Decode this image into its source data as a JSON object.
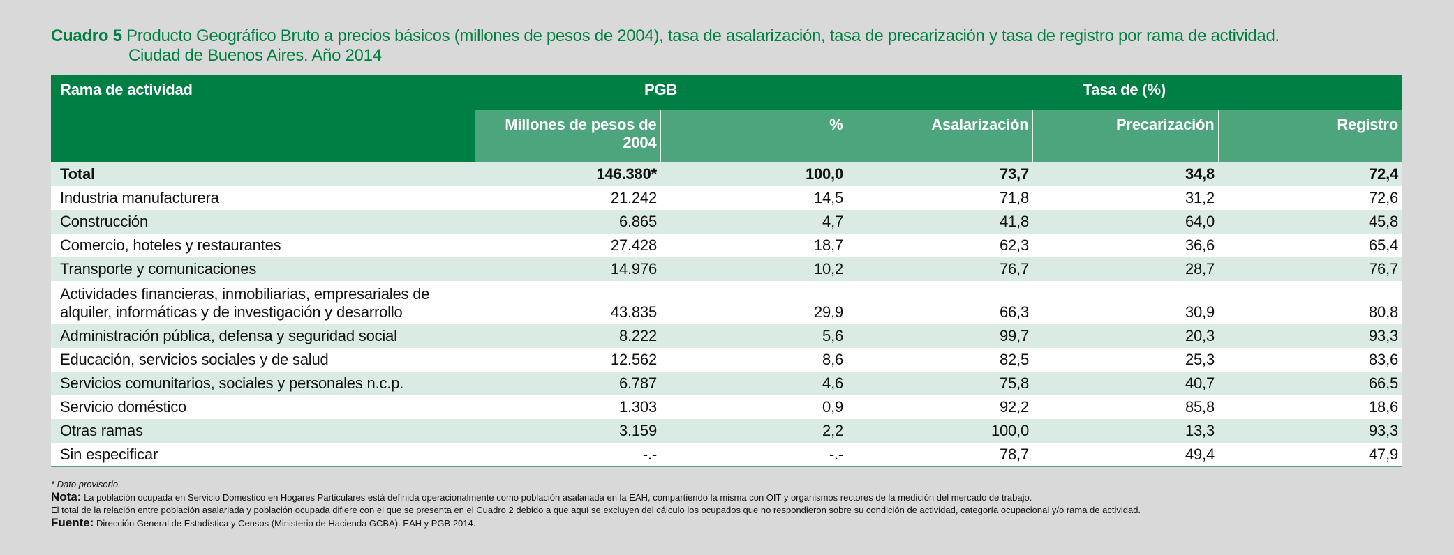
{
  "title": {
    "label": "Cuadro 5",
    "text": "Producto Geográfico Bruto a precios básicos (millones de pesos de 2004), tasa de asalarización, tasa de precarización y tasa de registro por rama de actividad.",
    "line2": "Ciudad de Buenos Aires. Año 2014"
  },
  "header": {
    "rama": "Rama de actividad",
    "pgb_group": "PGB",
    "tasa_group": "Tasa de (%)",
    "millones": "Millones de pesos de 2004",
    "pct": "%",
    "asalarizacion": "Asalarización",
    "precarizacion": "Precarización",
    "registro": "Registro"
  },
  "rows": [
    {
      "rama": "Total",
      "millones": "146.380*",
      "pct": "100,0",
      "asalarizacion": "73,7",
      "precarizacion": "34,8",
      "registro": "72,4"
    },
    {
      "rama": "Industria manufacturera",
      "millones": "21.242",
      "pct": "14,5",
      "asalarizacion": "71,8",
      "precarizacion": "31,2",
      "registro": "72,6"
    },
    {
      "rama": "Construcción",
      "millones": "6.865",
      "pct": "4,7",
      "asalarizacion": "41,8",
      "precarizacion": "64,0",
      "registro": "45,8"
    },
    {
      "rama": "Comercio, hoteles y restaurantes",
      "millones": "27.428",
      "pct": "18,7",
      "asalarizacion": "62,3",
      "precarizacion": "36,6",
      "registro": "65,4"
    },
    {
      "rama": "Transporte y comunicaciones",
      "millones": "14.976",
      "pct": "10,2",
      "asalarizacion": "76,7",
      "precarizacion": "28,7",
      "registro": "76,7"
    },
    {
      "rama": "Actividades financieras, inmobiliarias, empresariales de alquiler, informáticas y de investigación y desarrollo",
      "millones": "43.835",
      "pct": "29,9",
      "asalarizacion": "66,3",
      "precarizacion": "30,9",
      "registro": "80,8"
    },
    {
      "rama": "Administración pública, defensa y seguridad social",
      "millones": "8.222",
      "pct": "5,6",
      "asalarizacion": "99,7",
      "precarizacion": "20,3",
      "registro": "93,3"
    },
    {
      "rama": "Educación, servicios sociales y de salud",
      "millones": "12.562",
      "pct": "8,6",
      "asalarizacion": "82,5",
      "precarizacion": "25,3",
      "registro": "83,6"
    },
    {
      "rama": "Servicios comunitarios, sociales y personales n.c.p.",
      "millones": "6.787",
      "pct": "4,6",
      "asalarizacion": "75,8",
      "precarizacion": "40,7",
      "registro": "66,5"
    },
    {
      "rama": "Servicio doméstico",
      "millones": "1.303",
      "pct": "0,9",
      "asalarizacion": "92,2",
      "precarizacion": "85,8",
      "registro": "18,6"
    },
    {
      "rama": "Otras ramas",
      "millones": "3.159",
      "pct": "2,2",
      "asalarizacion": "100,0",
      "precarizacion": "13,3",
      "registro": "93,3"
    },
    {
      "rama": "Sin especificar",
      "millones": "-.-",
      "pct": "-.-",
      "asalarizacion": "78,7",
      "precarizacion": "49,4",
      "registro": "47,9"
    }
  ],
  "notes": {
    "provisional": "* Dato provisorio.",
    "nota_label": "Nota:",
    "nota_line1": "La población ocupada en Servicio Domestico en Hogares Particulares está definida operacionalmente como población asalariada en la EAH, compartiendo la misma con OIT y organismos rectores de la medición del mercado de trabajo.",
    "nota_line2": "El total de la relación entre población asalariada y población ocupada difiere con el que se presenta en el Cuadro 2 debido a que aquí se excluyen del cálculo los ocupados que no respondieron sobre su condición de actividad, categoría ocupacional y/o rama de actividad.",
    "fuente_label": "Fuente:",
    "fuente_text": "Dirección General de Estadística y Censos (Ministerio de Hacienda GCBA). EAH y PGB 2014."
  },
  "colors": {
    "title_green": "#00803f",
    "header_dark": "#007f44",
    "header_mid": "#4da57e",
    "row_shade": "#d9ebe2",
    "background": "#d9d9d9"
  }
}
